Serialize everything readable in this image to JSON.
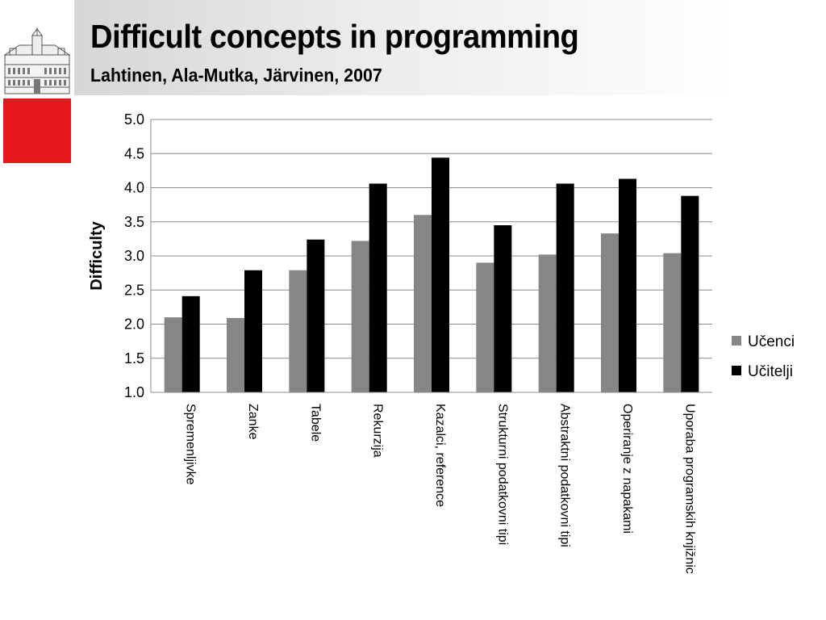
{
  "slide": {
    "title": "Difficult concepts in programming",
    "subtitle": "Lahtinen, Ala-Mutka, Järvinen, 2007"
  },
  "logo": {
    "icon": "university-building-icon",
    "accent_icon": "red-square-icon",
    "accent_color": "#e4181c"
  },
  "chart_data": {
    "type": "bar",
    "title": "",
    "xlabel": "",
    "ylabel": "Difficulty",
    "ylim": [
      1.0,
      5.0
    ],
    "yticks": [
      "1.0",
      "1.5",
      "2.0",
      "2.5",
      "3.0",
      "3.5",
      "4.0",
      "4.5",
      "5.0"
    ],
    "grid": true,
    "legend_position": "right",
    "categories": [
      "Spremenljivke",
      "Zanke",
      "Tabele",
      "Rekurzija",
      "Kazalci, reference",
      "Strukturni podatkovni tipi",
      "Abstraktni podatkovni tipi",
      "Operiranje z napakami",
      "Uporaba programskih knjižnic"
    ],
    "series": [
      {
        "name": "Učenci",
        "color": "#868686",
        "values": [
          2.1,
          2.09,
          2.79,
          3.22,
          3.6,
          2.9,
          3.02,
          3.33,
          3.04
        ]
      },
      {
        "name": "Učitelji",
        "color": "#000000",
        "values": [
          2.41,
          2.79,
          3.24,
          4.06,
          4.44,
          3.45,
          4.06,
          4.13,
          3.88
        ]
      }
    ]
  }
}
